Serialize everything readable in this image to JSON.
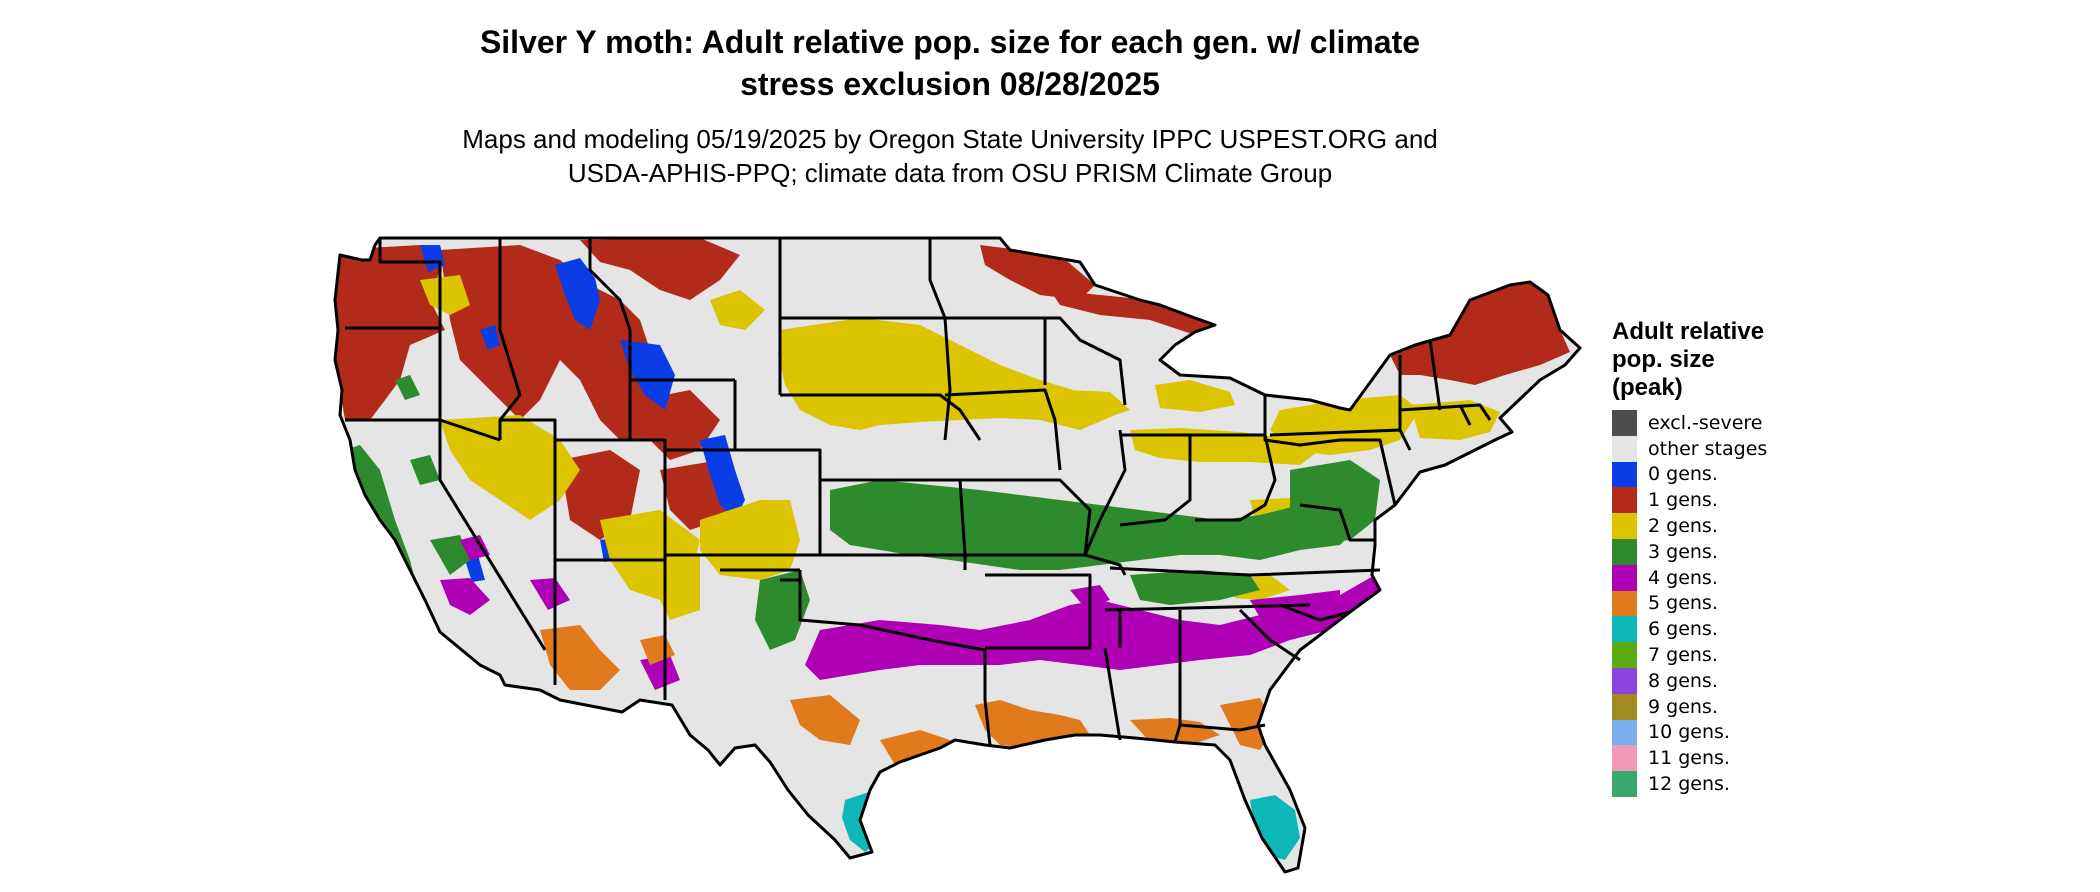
{
  "title": {
    "line1": "Silver Y moth: Adult relative pop. size for each gen. w/ climate",
    "line2": "stress exclusion 08/28/2025"
  },
  "subtitle": {
    "line1": "Maps and modeling 05/19/2025 by Oregon State University IPPC USPEST.ORG and",
    "line2": "USDA-APHIS-PPQ; climate data from OSU PRISM Climate Group"
  },
  "legend": {
    "title_line1": "Adult relative",
    "title_line2": "pop. size",
    "title_line3": "(peak)",
    "items": [
      {
        "label": "excl.-severe",
        "color": "#4d4d4d"
      },
      {
        "label": "other stages",
        "color": "#e5e5e5"
      },
      {
        "label": "0 gens.",
        "color": "#0a3de6"
      },
      {
        "label": "1 gens.",
        "color": "#b22a1a"
      },
      {
        "label": "2 gens.",
        "color": "#dcc400"
      },
      {
        "label": "3 gens.",
        "color": "#2d8a2d"
      },
      {
        "label": "4 gens.",
        "color": "#b000b5"
      },
      {
        "label": "5 gens.",
        "color": "#e07a1c"
      },
      {
        "label": "6 gens.",
        "color": "#0fb8b8"
      },
      {
        "label": "7 gens.",
        "color": "#5cab14"
      },
      {
        "label": "8 gens.",
        "color": "#8a45dc"
      },
      {
        "label": "9 gens.",
        "color": "#a38b22"
      },
      {
        "label": "10 gens.",
        "color": "#78afec"
      },
      {
        "label": "11 gens.",
        "color": "#f09ab8"
      },
      {
        "label": "12 gens.",
        "color": "#3aa86c"
      }
    ]
  }
}
